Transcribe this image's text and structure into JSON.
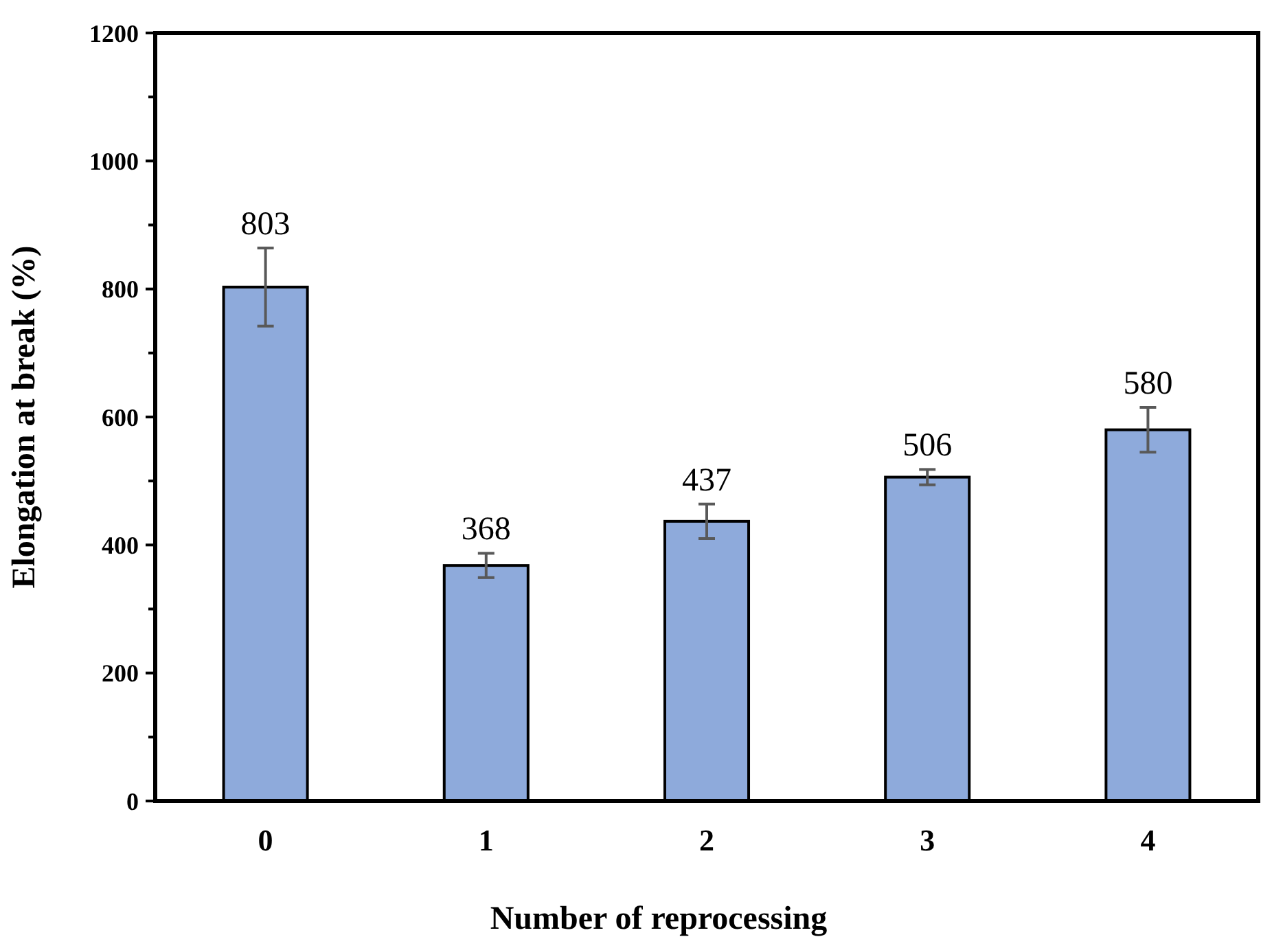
{
  "chart_data": {
    "type": "bar",
    "xlabel": "Number of reprocessing",
    "ylabel": "Elongation at break (%)",
    "categories": [
      "0",
      "1",
      "2",
      "3",
      "4"
    ],
    "values": [
      803,
      368,
      437,
      506,
      580
    ],
    "errors": [
      61,
      19,
      27,
      12,
      35
    ],
    "color": "#8eaadb",
    "data_labels": true,
    "ylim": [
      0,
      1200
    ],
    "yticks": [
      0,
      {
        "value": 100,
        "label": null
      },
      200,
      {
        "value": 300,
        "label": null
      },
      400,
      {
        "value": 500,
        "label": null
      },
      600,
      {
        "value": 700,
        "label": null
      },
      800,
      {
        "value": 900,
        "label": null
      },
      1000,
      {
        "value": 1100,
        "label": null
      },
      1200
    ],
    "grid": false
  }
}
